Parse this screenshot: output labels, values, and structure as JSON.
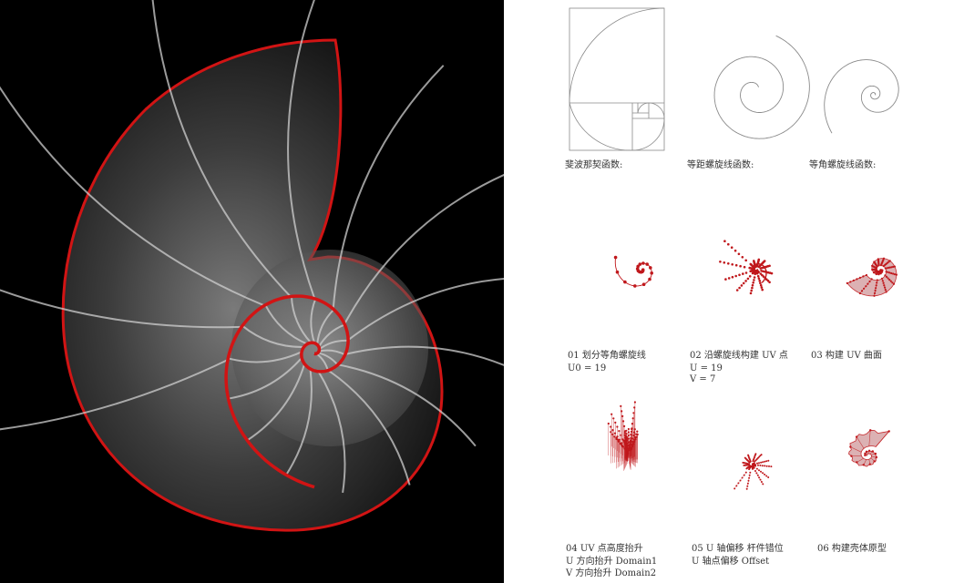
{
  "shell_photo": {
    "accent_color": "#d11414",
    "background": "#000000"
  },
  "row1_labels": [
    "斐波那契函数:",
    "等距螺旋线函数:",
    "等角螺旋线函数:"
  ],
  "steps": [
    {
      "title": "01 划分等角螺旋线",
      "params": [
        "U0 = 19"
      ]
    },
    {
      "title": "02 沿螺旋线构建 UV 点",
      "params": [
        "U = 19",
        "V = 7"
      ]
    },
    {
      "title": "03 构建 UV 曲面",
      "params": []
    },
    {
      "title": "04 UV 点高度抬升",
      "params": [
        "U 方向抬升 Domain1",
        "V 方向抬升 Domain2"
      ]
    },
    {
      "title": "05 U 轴偏移 杆件错位",
      "params": [
        "U 轴点偏移 Offset"
      ]
    },
    {
      "title": "06 构建壳体原型",
      "params": []
    }
  ],
  "colors": {
    "point": "#c0181c",
    "fill": "#d9a9ab",
    "line_gray": "#8a8a8a"
  }
}
